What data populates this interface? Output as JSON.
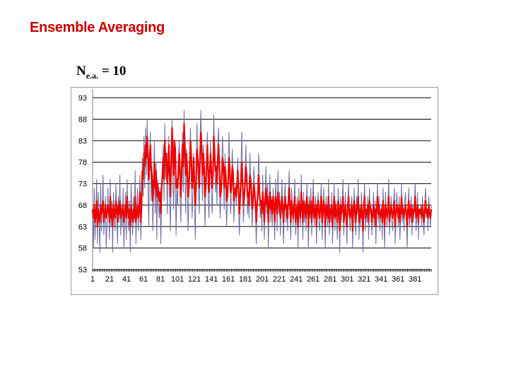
{
  "slide": {
    "title": "Ensemble Averaging",
    "ne_label_prefix": "N",
    "ne_label_sub": "e.a.",
    "ne_label_value": " = 10"
  },
  "chart_data": {
    "type": "line",
    "title": "",
    "xlabel": "",
    "ylabel": "",
    "ylim": [
      53,
      95
    ],
    "xlim": [
      1,
      400
    ],
    "y_ticks": [
      93,
      88,
      83,
      78,
      73,
      68,
      63,
      58,
      53
    ],
    "x_tick_labels": [
      "1",
      "21",
      "41",
      "61",
      "81",
      "101",
      "121",
      "141",
      "161",
      "181",
      "201",
      "221",
      "241",
      "261",
      "281",
      "301",
      "321",
      "341",
      "361",
      "381"
    ],
    "grid": "horizontal",
    "legend": "none",
    "series": [
      {
        "color": "#6b6b9e",
        "values": [
          67,
          58,
          72,
          60,
          66,
          74,
          59,
          71,
          65,
          57,
          73,
          62,
          68,
          75,
          61,
          66,
          70,
          58,
          64,
          72,
          67,
          60,
          74,
          63,
          69,
          57,
          71,
          65,
          62,
          73,
          66,
          59,
          70,
          64,
          75,
          61,
          68,
          63,
          72,
          58,
          66,
          71,
          60,
          74,
          65,
          62,
          69,
          57,
          73,
          66,
          61,
          70,
          64,
          76,
          59,
          67,
          72,
          62,
          68,
          75,
          60,
          66,
          79,
          70,
          84,
          72,
          86,
          75,
          88,
          74,
          63,
          80,
          85,
          69,
          77,
          62,
          71,
          83,
          66,
          78,
          60,
          74,
          68,
          65,
          72,
          59,
          70,
          76,
          82,
          69,
          87,
          74,
          80,
          66,
          75,
          84,
          70,
          62,
          77,
          88,
          73,
          67,
          82,
          76,
          61,
          72,
          68,
          79,
          83,
          70,
          64,
          76,
          85,
          71,
          90,
          77,
          66,
          81,
          73,
          62,
          70,
          78,
          86,
          74,
          65,
          71,
          80,
          68,
          60,
          75,
          87,
          79,
          72,
          66,
          84,
          90,
          76,
          69,
          82,
          74,
          63,
          71,
          79,
          85,
          70,
          65,
          77,
          83,
          72,
          66,
          74,
          89,
          80,
          71,
          76,
          68,
          82,
          86,
          73,
          65,
          70,
          78,
          84,
          75,
          67,
          80,
          72,
          63,
          69,
          77,
          85,
          74,
          66,
          71,
          81,
          76,
          64,
          70,
          73,
          68,
          75,
          79,
          67,
          61,
          72,
          78,
          85,
          70,
          64,
          69,
          76,
          82,
          73,
          66,
          71,
          65,
          80,
          74,
          68,
          63,
          70,
          77,
          72,
          66,
          59,
          68,
          74,
          80,
          71,
          65,
          69,
          62,
          75,
          67,
          60,
          71,
          77,
          66,
          73,
          58,
          69,
          75,
          64,
          70,
          63,
          72,
          67,
          60,
          74,
          69,
          62,
          76,
          66,
          71,
          61,
          68,
          74,
          65,
          59,
          70,
          73,
          64,
          68,
          62,
          71,
          76,
          66,
          60,
          72,
          67,
          63,
          69,
          74,
          61,
          65,
          70,
          58,
          72,
          66,
          63,
          75,
          68,
          60,
          71,
          64,
          69,
          62,
          73,
          67,
          58,
          70,
          65,
          72,
          61,
          68,
          74,
          63,
          66,
          70,
          59,
          67,
          71,
          64,
          62,
          69,
          73,
          60,
          66,
          72,
          65,
          58,
          70,
          67,
          63,
          74,
          61,
          68,
          64,
          71,
          59,
          66,
          73,
          62,
          69,
          65,
          60,
          72,
          67,
          57,
          70,
          64,
          68,
          74,
          61,
          66,
          71,
          63,
          59,
          69,
          73,
          65,
          62,
          68,
          70,
          58,
          67,
          72,
          64,
          61,
          70,
          66,
          74,
          60,
          68,
          63,
          71,
          65,
          57,
          69,
          73,
          62,
          67,
          64,
          70,
          60,
          72,
          66,
          68,
          61,
          65,
          71,
          63,
          69,
          59,
          67,
          73,
          64,
          70,
          62,
          66,
          68,
          60,
          72,
          65,
          58,
          71,
          67,
          63,
          69,
          74,
          61,
          66,
          70,
          64,
          62,
          68,
          72,
          59,
          65,
          71,
          67,
          63,
          70,
          60,
          66,
          73,
          64,
          68,
          62,
          69,
          71,
          65,
          58,
          67,
          72,
          63,
          66,
          70,
          61,
          68,
          64,
          69,
          73,
          62,
          65,
          71,
          60,
          67,
          66,
          68,
          63,
          70,
          64,
          61,
          69,
          72,
          65,
          67,
          62,
          70,
          66,
          63,
          68
        ],
        "stroke_width": 1
      },
      {
        "color": "#ee0000",
        "values": [
          67,
          65,
          68,
          64,
          66,
          69,
          63,
          67,
          65,
          64,
          68,
          66,
          67,
          69,
          64,
          66,
          68,
          65,
          66,
          68,
          67,
          64,
          70,
          65,
          67,
          63,
          68,
          66,
          65,
          69,
          67,
          64,
          68,
          66,
          69,
          65,
          67,
          66,
          68,
          64,
          66,
          68,
          65,
          70,
          67,
          65,
          67,
          63,
          68,
          66,
          64,
          67,
          65,
          70,
          64,
          66,
          68,
          65,
          67,
          71,
          64,
          68,
          76,
          74,
          80,
          77,
          82,
          79,
          84,
          80,
          74,
          78,
          82,
          76,
          75,
          69,
          72,
          78,
          72,
          76,
          70,
          73,
          71,
          69,
          71,
          66,
          72,
          75,
          79,
          74,
          83,
          78,
          80,
          73,
          76,
          82,
          75,
          70,
          78,
          86,
          80,
          75,
          83,
          81,
          72,
          74,
          72,
          77,
          80,
          75,
          70,
          76,
          82,
          77,
          87,
          82,
          75,
          80,
          76,
          70,
          72,
          77,
          83,
          79,
          72,
          74,
          79,
          73,
          68,
          73,
          81,
          79,
          76,
          72,
          80,
          85,
          81,
          75,
          80,
          77,
          70,
          72,
          77,
          82,
          76,
          71,
          76,
          80,
          76,
          72,
          75,
          84,
          80,
          76,
          77,
          73,
          79,
          82,
          77,
          70,
          71,
          75,
          79,
          77,
          72,
          77,
          75,
          69,
          70,
          74,
          79,
          76,
          71,
          72,
          77,
          76,
          69,
          71,
          72,
          70,
          73,
          76,
          71,
          66,
          70,
          74,
          78,
          73,
          68,
          70,
          73,
          77,
          75,
          70,
          71,
          68,
          75,
          74,
          71,
          67,
          69,
          73,
          71,
          68,
          64,
          68,
          71,
          75,
          71,
          68,
          69,
          66,
          71,
          68,
          64,
          69,
          72,
          68,
          70,
          64,
          68,
          71,
          67,
          69,
          66,
          70,
          68,
          64,
          70,
          69,
          66,
          71,
          68,
          69,
          65,
          67,
          70,
          67,
          64,
          68,
          70,
          67,
          68,
          65,
          69,
          72,
          68,
          64,
          69,
          67,
          65,
          68,
          70,
          64,
          66,
          68,
          63,
          69,
          67,
          65,
          71,
          68,
          64,
          69,
          66,
          68,
          65,
          70,
          68,
          63,
          68,
          66,
          69,
          64,
          67,
          70,
          65,
          66,
          68,
          63,
          67,
          69,
          66,
          65,
          68,
          70,
          64,
          66,
          69,
          67,
          63,
          68,
          67,
          65,
          70,
          64,
          67,
          66,
          68,
          63,
          66,
          70,
          65,
          68,
          66,
          64,
          69,
          67,
          62,
          68,
          66,
          67,
          70,
          64,
          66,
          68,
          65,
          63,
          68,
          70,
          66,
          65,
          67,
          68,
          62,
          67,
          69,
          66,
          64,
          68,
          67,
          70,
          64,
          67,
          65,
          68,
          66,
          62,
          68,
          70,
          65,
          67,
          66,
          68,
          64,
          69,
          67,
          67,
          64,
          66,
          68,
          65,
          67,
          63,
          67,
          70,
          66,
          68,
          65,
          66,
          67,
          64,
          69,
          66,
          63,
          68,
          67,
          65,
          67,
          70,
          64,
          66,
          68,
          66,
          65,
          67,
          69,
          63,
          66,
          68,
          67,
          65,
          68,
          64,
          66,
          70,
          66,
          67,
          65,
          67,
          68,
          66,
          63,
          67,
          69,
          65,
          66,
          68,
          64,
          67,
          66,
          67,
          70,
          65,
          66,
          68,
          64,
          67,
          66,
          67,
          65,
          68,
          66,
          64,
          67,
          69,
          66,
          67,
          65,
          68,
          66,
          65,
          67
        ],
        "stroke_width": 2.2
      }
    ]
  },
  "colors": {
    "title": "#cc0000",
    "gridline": "#000000",
    "axis": "#808080"
  }
}
